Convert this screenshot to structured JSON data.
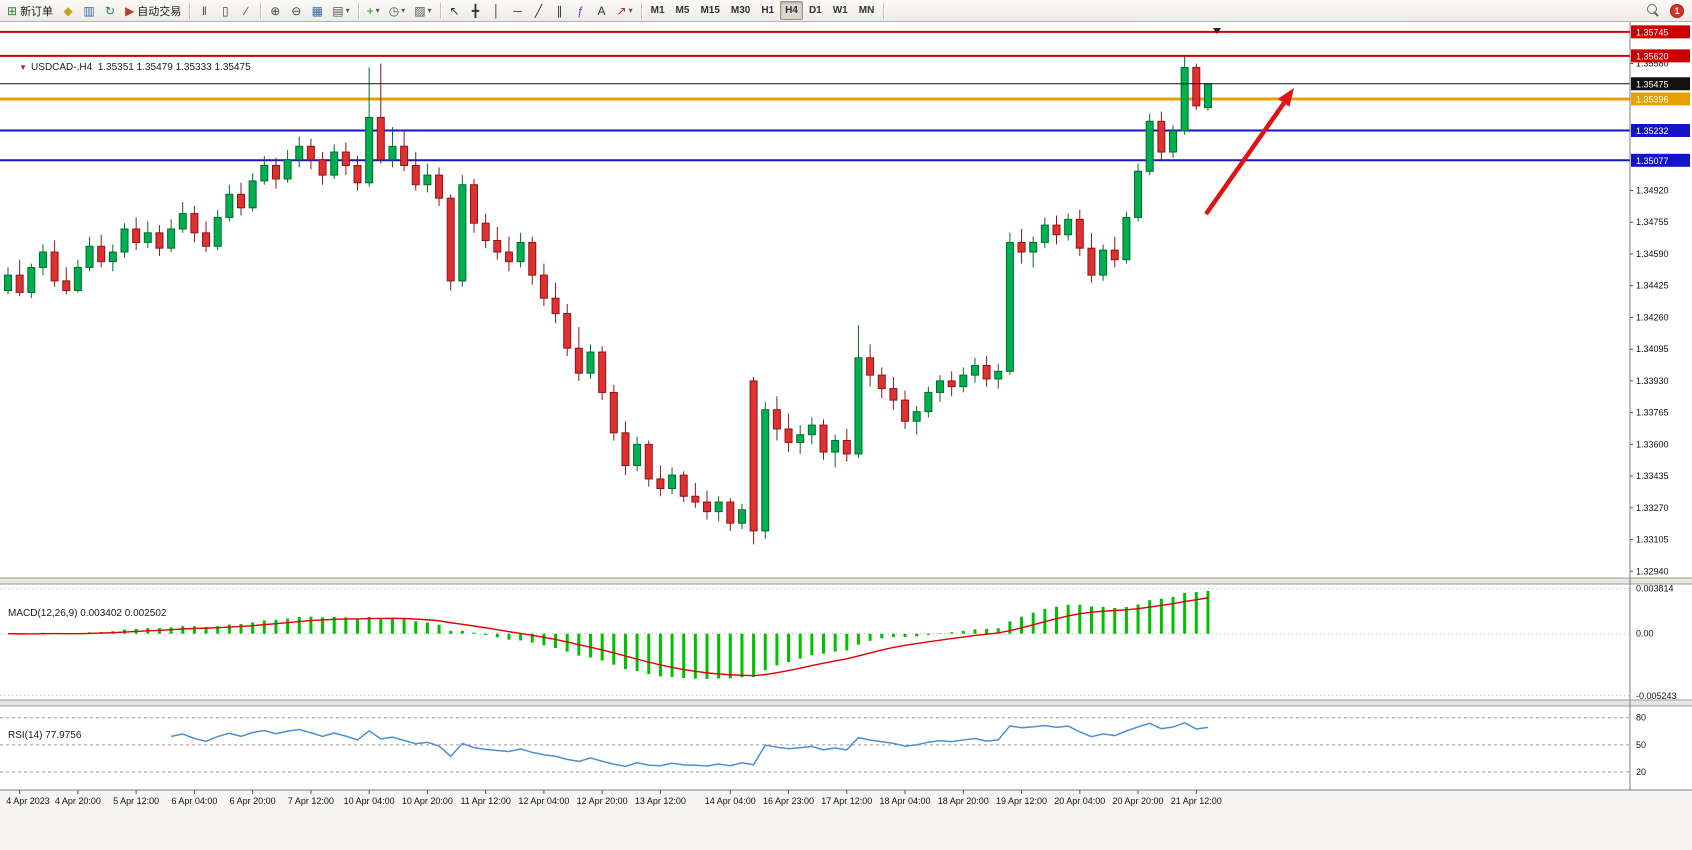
{
  "toolbar": {
    "items": [
      {
        "name": "new-order",
        "glyph": "⊞",
        "color": "#2e7d32",
        "label": "新订单"
      },
      {
        "name": "chart-profiles",
        "glyph": "◆",
        "color": "#c9a11a"
      },
      {
        "name": "market-watch",
        "glyph": "▥",
        "color": "#33679e"
      },
      {
        "name": "navigator",
        "glyph": "↻",
        "color": "#2e7d57"
      },
      {
        "name": "auto-trading",
        "glyph": "▶",
        "color": "#c0392b",
        "label": "自动交易"
      },
      {
        "type": "sep"
      },
      {
        "name": "chart-bars",
        "glyph": "‖",
        "color": "#444"
      },
      {
        "name": "chart-candles",
        "glyph": "▯",
        "color": "#444"
      },
      {
        "name": "chart-line",
        "glyph": "∕",
        "color": "#444"
      },
      {
        "type": "sep"
      },
      {
        "name": "zoom-in",
        "glyph": "⊕",
        "color": "#444"
      },
      {
        "name": "zoom-out",
        "glyph": "⊖",
        "color": "#444"
      },
      {
        "name": "tile-windows",
        "glyph": "▦",
        "color": "#33679e"
      },
      {
        "name": "arrange-charts",
        "glyph": "▤",
        "color": "#555",
        "caret": true
      },
      {
        "type": "sep"
      },
      {
        "name": "indicators",
        "glyph": "+",
        "color": "#149414",
        "caret": true
      },
      {
        "name": "periods",
        "glyph": "◷",
        "color": "#555",
        "caret": true
      },
      {
        "name": "templates",
        "glyph": "▨",
        "color": "#555",
        "caret": true
      },
      {
        "type": "sep"
      },
      {
        "name": "cursor",
        "glyph": "↖",
        "color": "#333"
      },
      {
        "name": "crosshair",
        "glyph": "╋",
        "color": "#333"
      },
      {
        "name": "vertical-line",
        "glyph": "│",
        "color": "#333"
      },
      {
        "name": "horizontal-line",
        "glyph": "─",
        "color": "#333"
      },
      {
        "name": "trendline",
        "glyph": "╱",
        "color": "#333"
      },
      {
        "name": "equidistant-channel",
        "glyph": "∥",
        "color": "#333"
      },
      {
        "name": "fibonacci",
        "glyph": "ƒ",
        "color": "#7b2fbe"
      },
      {
        "name": "text-label",
        "glyph": "A",
        "color": "#333"
      },
      {
        "name": "arrows-tool",
        "glyph": "↗",
        "color": "#b22",
        "caret": true
      },
      {
        "type": "sep"
      }
    ],
    "timeframes": [
      "M1",
      "M5",
      "M15",
      "M30",
      "H1",
      "H4",
      "D1",
      "W1",
      "MN"
    ],
    "active_timeframe": "H4",
    "notification_count": "1"
  },
  "chart": {
    "symbol_label": "USDCAD-,H4  1.35351 1.35479 1.35333 1.35475",
    "macd_label": "MACD(12,26,9) 0.003402 0.002502",
    "rsi_label": "RSI(14) 77.9756"
  },
  "chart_data": {
    "type": "candlestick",
    "symbol": "USDCAD",
    "timeframe": "H4",
    "price_range": {
      "max": 1.35765,
      "min": 1.32905
    },
    "price_axis_ticks": [
      "1.35580",
      "1.34920",
      "1.34755",
      "1.34590",
      "1.34425",
      "1.34260",
      "1.34095",
      "1.33930",
      "1.33765",
      "1.33600",
      "1.33435",
      "1.33270",
      "1.33105",
      "1.32940"
    ],
    "hlines": [
      {
        "price": 1.35745,
        "label": "1.35745",
        "color": "#cc0000",
        "width": 2
      },
      {
        "price": 1.3562,
        "label": "1.35620",
        "color": "#cc0000",
        "width": 2
      },
      {
        "price": 1.35475,
        "label": "1.35475",
        "color": "#111111",
        "width": 1,
        "current": true
      },
      {
        "price": 1.35396,
        "label": "1.35396",
        "color": "#e8a000",
        "width": 3
      },
      {
        "price": 1.35232,
        "label": "1.35232",
        "color": "#1414c8",
        "width": 2
      },
      {
        "price": 1.35077,
        "label": "1.35077",
        "color": "#1414c8",
        "width": 2
      }
    ],
    "ohlc": [
      [
        1.344,
        1.3452,
        1.3438,
        1.3448
      ],
      [
        1.3448,
        1.3456,
        1.3437,
        1.3439
      ],
      [
        1.3439,
        1.3454,
        1.3436,
        1.3452
      ],
      [
        1.3452,
        1.3464,
        1.3448,
        1.346
      ],
      [
        1.346,
        1.3466,
        1.3442,
        1.3445
      ],
      [
        1.3445,
        1.3452,
        1.3438,
        1.344
      ],
      [
        1.344,
        1.3456,
        1.3439,
        1.3452
      ],
      [
        1.3452,
        1.3468,
        1.345,
        1.3463
      ],
      [
        1.3463,
        1.3469,
        1.3452,
        1.3455
      ],
      [
        1.3455,
        1.3464,
        1.345,
        1.346
      ],
      [
        1.346,
        1.3475,
        1.3457,
        1.3472
      ],
      [
        1.3472,
        1.3478,
        1.3461,
        1.3465
      ],
      [
        1.3465,
        1.3476,
        1.3462,
        1.347
      ],
      [
        1.347,
        1.3474,
        1.3458,
        1.3462
      ],
      [
        1.3462,
        1.3477,
        1.346,
        1.3472
      ],
      [
        1.3472,
        1.3486,
        1.347,
        1.348
      ],
      [
        1.348,
        1.3484,
        1.3465,
        1.347
      ],
      [
        1.347,
        1.3476,
        1.346,
        1.3463
      ],
      [
        1.3463,
        1.3482,
        1.3461,
        1.3478
      ],
      [
        1.3478,
        1.3495,
        1.3476,
        1.349
      ],
      [
        1.349,
        1.3496,
        1.3479,
        1.3483
      ],
      [
        1.3483,
        1.3501,
        1.3481,
        1.3497
      ],
      [
        1.3497,
        1.351,
        1.3495,
        1.3505
      ],
      [
        1.3505,
        1.3509,
        1.3493,
        1.3498
      ],
      [
        1.3498,
        1.3513,
        1.3496,
        1.3508
      ],
      [
        1.3508,
        1.352,
        1.3504,
        1.3515
      ],
      [
        1.3515,
        1.3519,
        1.3503,
        1.3508
      ],
      [
        1.3508,
        1.3512,
        1.3495,
        1.35
      ],
      [
        1.35,
        1.3516,
        1.3498,
        1.3512
      ],
      [
        1.3512,
        1.3517,
        1.35,
        1.3505
      ],
      [
        1.3505,
        1.351,
        1.3492,
        1.3496
      ],
      [
        1.3496,
        1.3556,
        1.3494,
        1.353
      ],
      [
        1.353,
        1.3558,
        1.3506,
        1.3508
      ],
      [
        1.3508,
        1.3525,
        1.3504,
        1.3515
      ],
      [
        1.3515,
        1.3523,
        1.3502,
        1.3505
      ],
      [
        1.3505,
        1.3512,
        1.3492,
        1.3495
      ],
      [
        1.3495,
        1.3506,
        1.3491,
        1.35
      ],
      [
        1.35,
        1.3504,
        1.3484,
        1.3488
      ],
      [
        1.3488,
        1.349,
        1.344,
        1.3445
      ],
      [
        1.3445,
        1.35,
        1.3442,
        1.3495
      ],
      [
        1.3495,
        1.3498,
        1.347,
        1.3475
      ],
      [
        1.3475,
        1.348,
        1.3462,
        1.3466
      ],
      [
        1.3466,
        1.3473,
        1.3456,
        1.346
      ],
      [
        1.346,
        1.3468,
        1.345,
        1.3455
      ],
      [
        1.3455,
        1.347,
        1.3452,
        1.3465
      ],
      [
        1.3465,
        1.3468,
        1.3443,
        1.3448
      ],
      [
        1.3448,
        1.3454,
        1.3432,
        1.3436
      ],
      [
        1.3436,
        1.3444,
        1.3423,
        1.3428
      ],
      [
        1.3428,
        1.3433,
        1.3406,
        1.341
      ],
      [
        1.341,
        1.3421,
        1.3393,
        1.3397
      ],
      [
        1.3397,
        1.3412,
        1.3394,
        1.3408
      ],
      [
        1.3408,
        1.3411,
        1.3383,
        1.3387
      ],
      [
        1.3387,
        1.3391,
        1.3362,
        1.3366
      ],
      [
        1.3366,
        1.3372,
        1.3344,
        1.3349
      ],
      [
        1.3349,
        1.3364,
        1.3346,
        1.336
      ],
      [
        1.336,
        1.3362,
        1.3338,
        1.3342
      ],
      [
        1.3342,
        1.3349,
        1.3333,
        1.3337
      ],
      [
        1.3337,
        1.3348,
        1.3334,
        1.3344
      ],
      [
        1.3344,
        1.3346,
        1.333,
        1.3333
      ],
      [
        1.3333,
        1.334,
        1.3327,
        1.333
      ],
      [
        1.333,
        1.3336,
        1.3321,
        1.3325
      ],
      [
        1.3325,
        1.3333,
        1.332,
        1.333
      ],
      [
        1.333,
        1.3332,
        1.3315,
        1.3319
      ],
      [
        1.3319,
        1.3329,
        1.3316,
        1.3326
      ],
      [
        1.3393,
        1.3395,
        1.3308,
        1.3315
      ],
      [
        1.3315,
        1.3382,
        1.3311,
        1.3378
      ],
      [
        1.3378,
        1.3385,
        1.3362,
        1.3368
      ],
      [
        1.3368,
        1.3376,
        1.3356,
        1.3361
      ],
      [
        1.3361,
        1.337,
        1.3355,
        1.3365
      ],
      [
        1.3365,
        1.3374,
        1.336,
        1.337
      ],
      [
        1.337,
        1.3373,
        1.3352,
        1.3356
      ],
      [
        1.3356,
        1.3365,
        1.3348,
        1.3362
      ],
      [
        1.3362,
        1.3368,
        1.3351,
        1.3355
      ],
      [
        1.3355,
        1.3422,
        1.3353,
        1.3405
      ],
      [
        1.3405,
        1.3412,
        1.339,
        1.3396
      ],
      [
        1.3396,
        1.34,
        1.3384,
        1.3389
      ],
      [
        1.3389,
        1.3395,
        1.3378,
        1.3383
      ],
      [
        1.3383,
        1.3388,
        1.3368,
        1.3372
      ],
      [
        1.3372,
        1.338,
        1.3365,
        1.3377
      ],
      [
        1.3377,
        1.339,
        1.3374,
        1.3387
      ],
      [
        1.3387,
        1.3396,
        1.3382,
        1.3393
      ],
      [
        1.3393,
        1.3398,
        1.3385,
        1.339
      ],
      [
        1.339,
        1.34,
        1.3387,
        1.3396
      ],
      [
        1.3396,
        1.3405,
        1.3392,
        1.3401
      ],
      [
        1.3401,
        1.3406,
        1.339,
        1.3394
      ],
      [
        1.3394,
        1.3402,
        1.3389,
        1.3398
      ],
      [
        1.3398,
        1.347,
        1.3396,
        1.3465
      ],
      [
        1.3465,
        1.3472,
        1.3454,
        1.346
      ],
      [
        1.346,
        1.3468,
        1.3452,
        1.3465
      ],
      [
        1.3465,
        1.3478,
        1.3462,
        1.3474
      ],
      [
        1.3474,
        1.3479,
        1.3464,
        1.3469
      ],
      [
        1.3469,
        1.348,
        1.3466,
        1.3477
      ],
      [
        1.3477,
        1.3482,
        1.3458,
        1.3462
      ],
      [
        1.3462,
        1.347,
        1.3444,
        1.3448
      ],
      [
        1.3448,
        1.3464,
        1.3445,
        1.3461
      ],
      [
        1.3461,
        1.3468,
        1.3452,
        1.3456
      ],
      [
        1.3456,
        1.3481,
        1.3454,
        1.3478
      ],
      [
        1.3478,
        1.3506,
        1.3476,
        1.3502
      ],
      [
        1.3502,
        1.3532,
        1.35,
        1.3528
      ],
      [
        1.3528,
        1.3533,
        1.3508,
        1.3512
      ],
      [
        1.3512,
        1.3526,
        1.3509,
        1.3523
      ],
      [
        1.3523,
        1.3562,
        1.3521,
        1.3556
      ],
      [
        1.3556,
        1.3558,
        1.3534,
        1.3536
      ],
      [
        1.35351,
        1.35479,
        1.35333,
        1.35475
      ]
    ],
    "time_labels": [
      [
        "4 Apr 2023",
        1
      ],
      [
        "4 Apr 20:00",
        6
      ],
      [
        "5 Apr 12:00",
        11
      ],
      [
        "6 Apr 04:00",
        16
      ],
      [
        "6 Apr 20:00",
        21
      ],
      [
        "7 Apr 12:00",
        26
      ],
      [
        "10 Apr 04:00",
        31
      ],
      [
        "10 Apr 20:00",
        36
      ],
      [
        "11 Apr 12:00",
        41
      ],
      [
        "12 Apr 04:00",
        46
      ],
      [
        "12 Apr 20:00",
        51
      ],
      [
        "13 Apr 12:00",
        56
      ],
      [
        "14 Apr 04:00",
        62
      ],
      [
        "16 Apr 23:00",
        67
      ],
      [
        "17 Apr 12:00",
        72
      ],
      [
        "18 Apr 04:00",
        77
      ],
      [
        "18 Apr 20:00",
        82
      ],
      [
        "19 Apr 12:00",
        87
      ],
      [
        "20 Apr 04:00",
        92
      ],
      [
        "20 Apr 20:00",
        97
      ],
      [
        "21 Apr 12:00",
        102
      ]
    ],
    "macd": {
      "params": "12,26,9",
      "value": "0.003402",
      "signal_value": "0.002502",
      "axis_labels": [
        "0.003814",
        "0.00",
        "-0.005243"
      ],
      "axis_values": [
        0.003814,
        0,
        -0.005243
      ],
      "range": {
        "max": 0.0042,
        "min": -0.0056
      }
    },
    "rsi": {
      "period": 14,
      "value": "77.9756",
      "levels": [
        80,
        50,
        20
      ],
      "range": {
        "max": 93,
        "min": 0
      }
    },
    "colors": {
      "up": "#00b050",
      "up_stroke": "#006b2d",
      "down": "#e03131",
      "down_stroke": "#8e1616",
      "macd_hist": "#00c000",
      "macd_signal": "#e00000",
      "rsi_line": "#4a90d2"
    },
    "annotation_arrow": {
      "color": "#e01212"
    }
  }
}
